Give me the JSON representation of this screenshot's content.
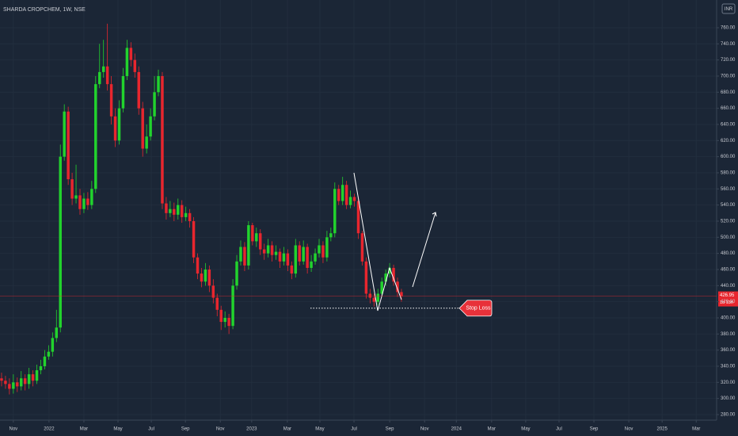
{
  "chart_data": {
    "type": "candlestick",
    "title": "SHARDA CROPCHEM, 1W, NSE",
    "currency": "INR",
    "up_color": "#22d32d",
    "down_color": "#e8262e",
    "grid": true,
    "open": [
      325,
      322,
      318,
      312,
      320,
      315,
      325,
      318,
      330,
      322,
      335,
      340,
      352,
      358,
      375,
      388,
      600,
      656,
      572,
      548,
      552,
      535,
      548,
      540,
      560,
      690,
      705,
      712,
      690,
      650,
      620,
      660,
      700,
      735,
      720,
      705,
      660,
      610,
      625,
      650,
      680,
      700,
      542,
      530,
      535,
      528,
      540,
      525,
      530,
      520,
      475,
      455,
      445,
      460,
      440,
      425,
      410,
      395,
      400,
      390,
      440,
      470,
      488,
      465,
      515,
      495,
      505,
      485,
      480,
      490,
      478,
      482,
      470,
      480,
      465,
      455,
      490,
      470,
      488,
      462,
      470,
      480,
      490,
      475,
      500,
      505,
      560,
      545,
      565,
      540,
      550,
      545,
      505,
      470,
      430,
      425,
      420,
      430,
      445,
      455,
      462,
      445,
      432
    ],
    "high": [
      332,
      328,
      325,
      330,
      326,
      334,
      330,
      338,
      335,
      342,
      348,
      360,
      366,
      382,
      410,
      615,
      665,
      662,
      580,
      590,
      560,
      555,
      556,
      570,
      700,
      740,
      745,
      765,
      700,
      660,
      670,
      710,
      745,
      742,
      728,
      712,
      668,
      640,
      660,
      700,
      708,
      705,
      550,
      545,
      543,
      548,
      546,
      538,
      535,
      525,
      480,
      462,
      468,
      465,
      448,
      430,
      415,
      408,
      405,
      448,
      478,
      496,
      494,
      520,
      518,
      512,
      510,
      492,
      498,
      495,
      490,
      486,
      488,
      485,
      470,
      498,
      495,
      496,
      492,
      478,
      486,
      498,
      495,
      508,
      512,
      568,
      565,
      575,
      570,
      558,
      554,
      550,
      508,
      475,
      436,
      430,
      436,
      450,
      460,
      468,
      466,
      450,
      436
    ],
    "low": [
      315,
      312,
      305,
      306,
      308,
      310,
      310,
      312,
      315,
      318,
      330,
      336,
      348,
      352,
      370,
      382,
      595,
      565,
      540,
      542,
      528,
      530,
      534,
      535,
      555,
      685,
      698,
      682,
      640,
      612,
      615,
      655,
      695,
      712,
      698,
      652,
      600,
      604,
      620,
      645,
      675,
      535,
      522,
      525,
      520,
      522,
      518,
      520,
      512,
      468,
      448,
      438,
      440,
      432,
      418,
      402,
      385,
      388,
      380,
      386,
      435,
      465,
      458,
      460,
      490,
      488,
      478,
      472,
      475,
      470,
      472,
      462,
      465,
      458,
      448,
      450,
      465,
      466,
      455,
      457,
      466,
      475,
      468,
      470,
      495,
      500,
      540,
      540,
      535,
      536,
      538,
      498,
      465,
      424,
      418,
      414,
      416,
      426,
      440,
      450,
      440,
      426,
      420
    ],
    "close": [
      322,
      318,
      312,
      320,
      315,
      325,
      318,
      330,
      322,
      335,
      340,
      352,
      358,
      375,
      388,
      600,
      656,
      572,
      548,
      552,
      535,
      548,
      540,
      560,
      690,
      705,
      712,
      690,
      650,
      620,
      660,
      700,
      735,
      720,
      705,
      660,
      610,
      625,
      650,
      680,
      700,
      542,
      530,
      535,
      528,
      540,
      525,
      530,
      520,
      475,
      455,
      445,
      460,
      440,
      425,
      410,
      395,
      400,
      390,
      440,
      470,
      488,
      465,
      515,
      495,
      505,
      485,
      480,
      490,
      478,
      482,
      470,
      480,
      465,
      455,
      490,
      470,
      488,
      462,
      470,
      480,
      490,
      475,
      500,
      505,
      560,
      545,
      565,
      540,
      550,
      545,
      505,
      470,
      430,
      425,
      420,
      430,
      445,
      455,
      462,
      445,
      432,
      427
    ],
    "last_price": 426.95,
    "countdown": "1d 13h",
    "stop_loss": {
      "label": "Stop Loss",
      "value": 412
    },
    "xlim": [
      -0.4,
      182.4
    ],
    "xticks": [
      {
        "value": 3,
        "label": "Nov"
      },
      {
        "value": 12.1,
        "label": "2022"
      },
      {
        "value": 21,
        "label": "Mar"
      },
      {
        "value": 29.7,
        "label": "May"
      },
      {
        "value": 38.2,
        "label": "Jul"
      },
      {
        "value": 46.9,
        "label": "Sep"
      },
      {
        "value": 55.8,
        "label": "Nov"
      },
      {
        "value": 63.8,
        "label": "2023"
      },
      {
        "value": 72.9,
        "label": "Mar"
      },
      {
        "value": 81.2,
        "label": "May"
      },
      {
        "value": 89.9,
        "label": "Jul"
      },
      {
        "value": 99,
        "label": "Sep"
      },
      {
        "value": 107.9,
        "label": "Nov"
      },
      {
        "value": 116,
        "label": "2024"
      },
      {
        "value": 125,
        "label": "Mar"
      },
      {
        "value": 133.7,
        "label": "May"
      },
      {
        "value": 142.2,
        "label": "Jul"
      },
      {
        "value": 151.1,
        "label": "Sep"
      },
      {
        "value": 160,
        "label": "Nov"
      },
      {
        "value": 168.5,
        "label": "2025"
      },
      {
        "value": 177.2,
        "label": "Mar"
      }
    ],
    "ylim": [
      273.1,
      794.4
    ],
    "yticks": [
      {
        "value": 280,
        "label": "280.00"
      },
      {
        "value": 300,
        "label": "300.00"
      },
      {
        "value": 320,
        "label": "320.00"
      },
      {
        "value": 340,
        "label": "340.00"
      },
      {
        "value": 360,
        "label": "360.00"
      },
      {
        "value": 380,
        "label": "380.00"
      },
      {
        "value": 400,
        "label": "400.00"
      },
      {
        "value": 420,
        "label": "420.00"
      },
      {
        "value": 440,
        "label": "440.00"
      },
      {
        "value": 460,
        "label": "460.00"
      },
      {
        "value": 480,
        "label": "480.00"
      },
      {
        "value": 500,
        "label": "500.00"
      },
      {
        "value": 520,
        "label": "520.00"
      },
      {
        "value": 540,
        "label": "540.00"
      },
      {
        "value": 560,
        "label": "560.00"
      },
      {
        "value": 580,
        "label": "580.00"
      },
      {
        "value": 600,
        "label": "600.00"
      },
      {
        "value": 620,
        "label": "620.00"
      },
      {
        "value": 640,
        "label": "640.00"
      },
      {
        "value": 660,
        "label": "660.00"
      },
      {
        "value": 680,
        "label": "680.00"
      },
      {
        "value": 700,
        "label": "700.00"
      },
      {
        "value": 720,
        "label": "720.00"
      },
      {
        "value": 740,
        "label": "740.00"
      },
      {
        "value": 760,
        "label": "760.00"
      }
    ]
  }
}
